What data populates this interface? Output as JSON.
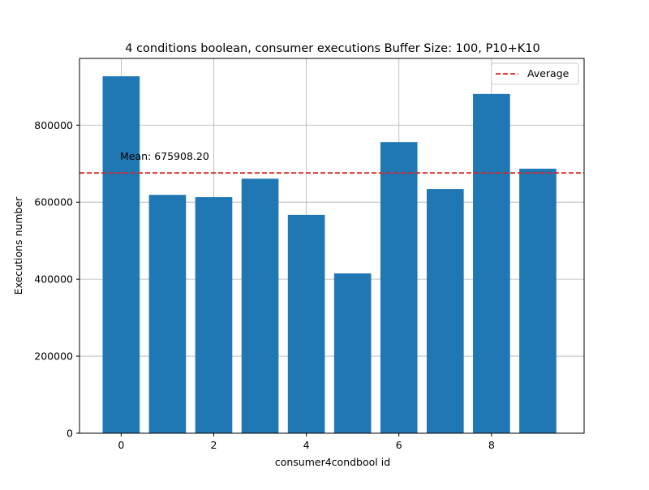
{
  "chart_data": {
    "type": "bar",
    "title": "4 conditions boolean, consumer executions Buffer Size: 100, P10+K10",
    "xlabel": "consumer4condbool id",
    "ylabel": "Executions number",
    "x": [
      0,
      1,
      2,
      3,
      4,
      5,
      6,
      7,
      8,
      9
    ],
    "values": [
      927000,
      619000,
      613000,
      661000,
      567000,
      415000,
      756000,
      634000,
      881000,
      687000
    ],
    "bar_color": "#1f77b4",
    "mean_line": {
      "value": 675908.2,
      "color": "#d62728",
      "style": "dashed",
      "legend_label": "Average",
      "annotation": "Mean: 675908.20"
    },
    "xlim": [
      -0.9,
      10.0
    ],
    "ylim": [
      0,
      973350
    ],
    "x_ticks": [
      0,
      2,
      4,
      6,
      8
    ],
    "x_tick_labels": [
      "0",
      "2",
      "4",
      "6",
      "8"
    ],
    "y_ticks": [
      0,
      200000,
      400000,
      600000,
      800000
    ],
    "y_tick_labels": [
      "0",
      "200000",
      "400000",
      "600000",
      "800000"
    ],
    "grid": true,
    "legend_position": "top-right"
  }
}
